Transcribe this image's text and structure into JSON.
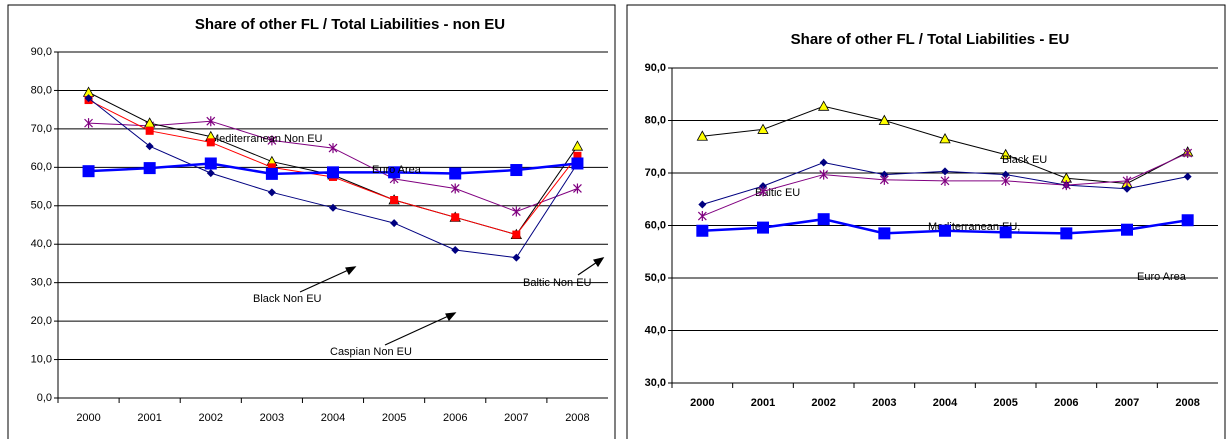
{
  "chart_data": [
    {
      "type": "line",
      "title": "Share of other FL / Total Liabilities - non EU",
      "categories": [
        "2000",
        "2001",
        "2002",
        "2003",
        "2004",
        "2005",
        "2006",
        "2007",
        "2008"
      ],
      "ylim": [
        0,
        90
      ],
      "yticks": [
        {
          "value": 0,
          "label": "0,0"
        },
        {
          "value": 10,
          "label": "10,0"
        },
        {
          "value": 20,
          "label": "20,0"
        },
        {
          "value": 30,
          "label": "30,0"
        },
        {
          "value": 40,
          "label": "40,0"
        },
        {
          "value": 50,
          "label": "50,0"
        },
        {
          "value": 60,
          "label": "60,0"
        },
        {
          "value": 70,
          "label": "70,0"
        },
        {
          "value": 80,
          "label": "80,0"
        },
        {
          "value": 90,
          "label": "90,0"
        }
      ],
      "grid": true,
      "series": [
        {
          "name": "Mediterranean Non EU",
          "color": "#800080",
          "marker": "star",
          "values": [
            71.5,
            70.8,
            72,
            67,
            65,
            57,
            54.5,
            48.5,
            54.5
          ]
        },
        {
          "name": "Black Non EU",
          "color": "#000000",
          "marker": "triangle",
          "marker_color": "#ffff00",
          "values": [
            79.5,
            71.5,
            68,
            61.5,
            58,
            51.5,
            47,
            42.5,
            65.5
          ]
        },
        {
          "name": "Caspian Non EU",
          "color": "#ff0000",
          "marker": "square",
          "values": [
            77.5,
            69.5,
            66.5,
            60,
            57.5,
            51.5,
            47,
            42.5,
            63
          ]
        },
        {
          "name": "Baltic Non EU",
          "color": "#000080",
          "marker": "diamond",
          "values": [
            78,
            65.5,
            58.5,
            53.5,
            49.5,
            45.5,
            38.5,
            36.5,
            61
          ]
        },
        {
          "name": "Euro Area",
          "color": "#0000ff",
          "marker": "bigsquare",
          "values": [
            59,
            59.8,
            61,
            58.3,
            58.7,
            58.7,
            58.4,
            59.3,
            61
          ]
        }
      ]
    },
    {
      "type": "line",
      "title": "Share of other FL / Total Liabilities - EU",
      "categories": [
        "2000",
        "2001",
        "2002",
        "2003",
        "2004",
        "2005",
        "2006",
        "2007",
        "2008"
      ],
      "ylim": [
        30,
        90
      ],
      "yticks": [
        {
          "value": 30,
          "label": "30,0"
        },
        {
          "value": 40,
          "label": "40,0"
        },
        {
          "value": 50,
          "label": "50,0"
        },
        {
          "value": 60,
          "label": "60,0"
        },
        {
          "value": 70,
          "label": "70,0"
        },
        {
          "value": 80,
          "label": "80,0"
        },
        {
          "value": 90,
          "label": "90,0"
        }
      ],
      "grid": true,
      "series": [
        {
          "name": "Black EU",
          "color": "#000000",
          "marker": "triangle",
          "marker_color": "#ffff00",
          "values": [
            77,
            78.3,
            82.7,
            80,
            76.5,
            73.5,
            69,
            68,
            74
          ]
        },
        {
          "name": "Baltic  EU",
          "color": "#000080",
          "marker": "diamond",
          "values": [
            64,
            67.5,
            72,
            69.7,
            70.3,
            69.7,
            67.7,
            67,
            69.3
          ]
        },
        {
          "name": "Mediterranean EU,",
          "color": "#800080",
          "marker": "star",
          "values": [
            61.8,
            66.5,
            69.7,
            68.7,
            68.5,
            68.5,
            67.7,
            68.5,
            73.8
          ]
        },
        {
          "name": "Euro Area",
          "color": "#0000ff",
          "marker": "bigsquare",
          "values": [
            59,
            59.6,
            61.2,
            58.5,
            59,
            58.7,
            58.5,
            59.2,
            61
          ]
        }
      ]
    }
  ]
}
